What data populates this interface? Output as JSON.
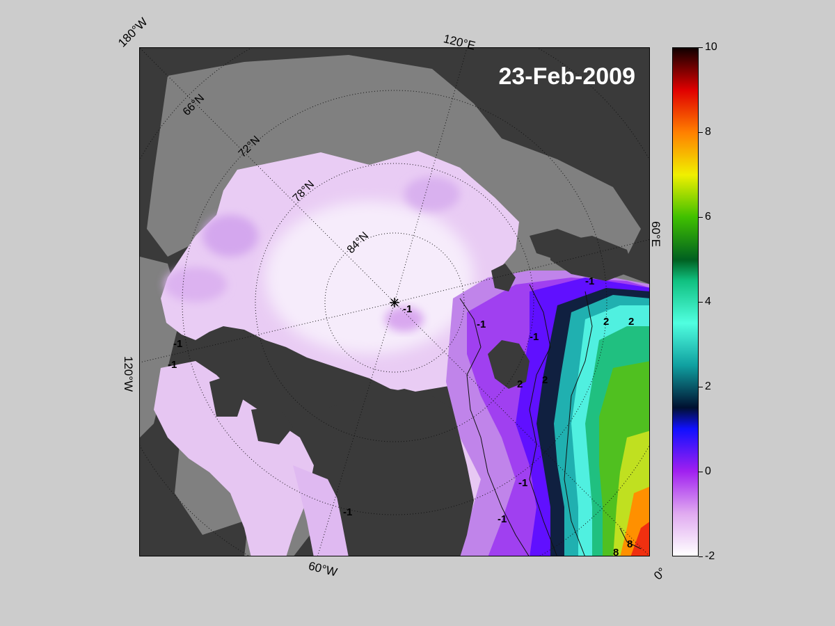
{
  "map": {
    "date_label": "23-Feb-2009",
    "meridian_labels": [
      {
        "key": "lon-180w",
        "text": "180°W"
      },
      {
        "key": "lon-120e",
        "text": "120°E"
      },
      {
        "key": "lon-60e",
        "text": "60°E"
      },
      {
        "key": "lon-0",
        "text": "0°"
      },
      {
        "key": "lon-60w",
        "text": "60°W"
      },
      {
        "key": "lon-120w",
        "text": "120°W"
      }
    ],
    "parallel_labels": [
      "66°N",
      "72°N",
      "78°N",
      "84°N"
    ],
    "contour_labels": [
      "-1",
      "2",
      "8"
    ],
    "colors": {
      "background": "#cccccc",
      "land": "#3a3a3a",
      "ocean_no_data": "#808080",
      "ice_pale": "#efd9f7",
      "ice_violet": "#c98be6"
    }
  },
  "colorbar": {
    "min": -2,
    "max": 10,
    "ticks": [
      {
        "value": 10,
        "label": "10"
      },
      {
        "value": 8,
        "label": "8"
      },
      {
        "value": 6,
        "label": "6"
      },
      {
        "value": 4,
        "label": "4"
      },
      {
        "value": 2,
        "label": "2"
      },
      {
        "value": 0,
        "label": "0"
      },
      {
        "value": -2,
        "label": "-2"
      }
    ],
    "stops": [
      {
        "value": -2,
        "color": "#ffffff"
      },
      {
        "value": -1,
        "color": "#e0aaf0"
      },
      {
        "value": 0,
        "color": "#a020f0"
      },
      {
        "value": 1,
        "color": "#1010ff"
      },
      {
        "value": 1.5,
        "color": "#001030"
      },
      {
        "value": 2.5,
        "color": "#10a0a0"
      },
      {
        "value": 3.5,
        "color": "#50ffe0"
      },
      {
        "value": 4.5,
        "color": "#10c080"
      },
      {
        "value": 5,
        "color": "#006020"
      },
      {
        "value": 6,
        "color": "#40c000"
      },
      {
        "value": 7,
        "color": "#f0f000"
      },
      {
        "value": 8,
        "color": "#ff8000"
      },
      {
        "value": 9,
        "color": "#e00000"
      },
      {
        "value": 10,
        "color": "#100000"
      }
    ]
  }
}
